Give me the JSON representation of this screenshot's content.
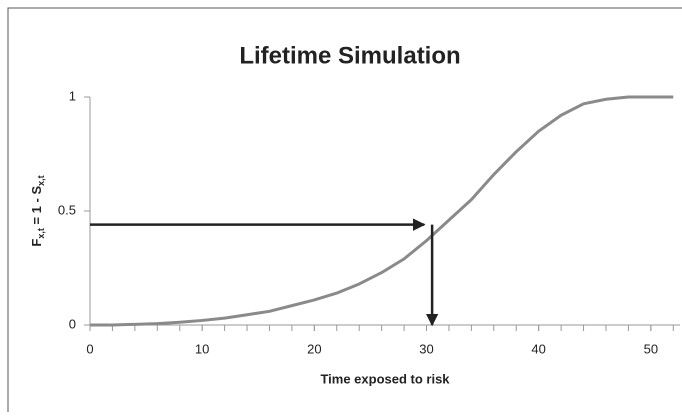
{
  "chart_data": {
    "type": "line",
    "title": "Lifetime Simulation",
    "xlabel": "Time exposed to risk",
    "ylabel": [
      {
        "text": "F"
      },
      {
        "text": "x,t",
        "sub": true
      },
      {
        "text": " = 1 - S"
      },
      {
        "text": "x,t",
        "sub": true
      }
    ],
    "x": [
      0,
      2,
      4,
      6,
      8,
      10,
      12,
      14,
      16,
      18,
      20,
      22,
      24,
      26,
      28,
      30,
      32,
      34,
      36,
      38,
      40,
      42,
      44,
      46,
      48,
      50,
      52
    ],
    "series": [
      {
        "color": "#8a8a8a",
        "values": [
          0,
          0,
          0.003,
          0.006,
          0.012,
          0.02,
          0.03,
          0.045,
          0.06,
          0.085,
          0.11,
          0.14,
          0.18,
          0.23,
          0.29,
          0.37,
          0.46,
          0.55,
          0.66,
          0.76,
          0.85,
          0.92,
          0.97,
          0.99,
          1,
          1,
          1
        ]
      }
    ],
    "xlim": [
      0,
      52.6
    ],
    "ylim": [
      0,
      1
    ],
    "xticks": [
      0,
      10,
      20,
      30,
      40,
      50
    ],
    "xminorticks": [
      0,
      2,
      4,
      6,
      8,
      10,
      12,
      14,
      16,
      18,
      20,
      22,
      24,
      26,
      28,
      30,
      32,
      34,
      36,
      38,
      40,
      42,
      44,
      46,
      48,
      50,
      52
    ],
    "yticks": [
      0,
      0.5,
      1
    ],
    "arrows": [
      {
        "x": [
          0,
          29.8
        ],
        "y": [
          0.44,
          0.44
        ]
      },
      {
        "x": [
          30.5,
          30.5
        ],
        "y": [
          0.44,
          0
        ]
      }
    ],
    "arrow_color": "#222222"
  }
}
